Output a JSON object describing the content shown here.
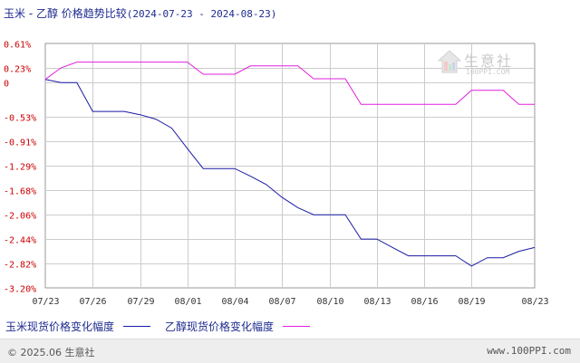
{
  "title": {
    "main": "玉米 - 乙醇 价格趋势比较",
    "range": "(2024-07-23 - 2024-08-23)"
  },
  "watermark": {
    "name": "生意社",
    "url": "100PPI.COM"
  },
  "footer": {
    "left": "© 2025.06 生意社",
    "right": "www.100PPI.com"
  },
  "colors": {
    "corn": "#1a1aa6",
    "ethanol": "#e020e0",
    "grid": "#cccccc",
    "axis_text": "#cc0000"
  },
  "chart_data": {
    "type": "line",
    "title": "玉米 - 乙醇 价格趋势比较(2024-07-23 - 2024-08-23)",
    "ylim": [
      -3.2,
      0.61
    ],
    "y_ticks": [
      "0.61%",
      "0.23%",
      "0",
      "-0.53%",
      "-0.91%",
      "-1.29%",
      "-1.68%",
      "-2.06%",
      "-2.44%",
      "-2.82%",
      "-3.20%"
    ],
    "y_tick_values": [
      0.61,
      0.23,
      0,
      -0.53,
      -0.91,
      -1.29,
      -1.68,
      -2.06,
      -2.44,
      -2.82,
      -3.2
    ],
    "x_ticks": [
      "07/23",
      "07/26",
      "07/29",
      "08/01",
      "08/04",
      "08/07",
      "08/10",
      "08/13",
      "08/16",
      "08/19",
      "08/23"
    ],
    "x_tick_days": [
      0,
      3,
      6,
      9,
      12,
      15,
      18,
      21,
      24,
      27,
      31
    ],
    "grid": true,
    "legend_position": "bottom-left",
    "series": [
      {
        "name": "玉米现货价格变化幅度",
        "color": "#1a1aa6",
        "x": [
          0,
          1,
          2,
          3,
          4,
          5,
          6,
          7,
          8,
          9,
          10,
          11,
          12,
          13,
          14,
          15,
          16,
          17,
          18,
          19,
          20,
          21,
          22,
          23,
          24,
          25,
          26,
          27,
          28,
          29,
          30,
          31
        ],
        "y": [
          0.05,
          0,
          0,
          -0.45,
          -0.45,
          -0.45,
          -0.5,
          -0.57,
          -0.71,
          -1.03,
          -1.34,
          -1.34,
          -1.34,
          -1.46,
          -1.59,
          -1.79,
          -1.95,
          -2.06,
          -2.06,
          -2.06,
          -2.44,
          -2.44,
          -2.57,
          -2.7,
          -2.7,
          -2.7,
          -2.7,
          -2.86,
          -2.73,
          -2.73,
          -2.63,
          -2.57
        ]
      },
      {
        "name": "乙醇现货价格变化幅度",
        "color": "#e020e0",
        "x": [
          0,
          1,
          2,
          3,
          4,
          5,
          6,
          7,
          8,
          9,
          10,
          11,
          12,
          13,
          14,
          15,
          16,
          17,
          18,
          19,
          20,
          21,
          22,
          23,
          24,
          25,
          26,
          27,
          28,
          29,
          30,
          31
        ],
        "y": [
          0.05,
          0.23,
          0.32,
          0.32,
          0.32,
          0.32,
          0.32,
          0.32,
          0.32,
          0.32,
          0.13,
          0.13,
          0.13,
          0.26,
          0.26,
          0.26,
          0.26,
          0.06,
          0.06,
          0.06,
          -0.34,
          -0.34,
          -0.34,
          -0.34,
          -0.34,
          -0.34,
          -0.34,
          -0.12,
          -0.12,
          -0.12,
          -0.34,
          -0.34
        ]
      }
    ]
  }
}
